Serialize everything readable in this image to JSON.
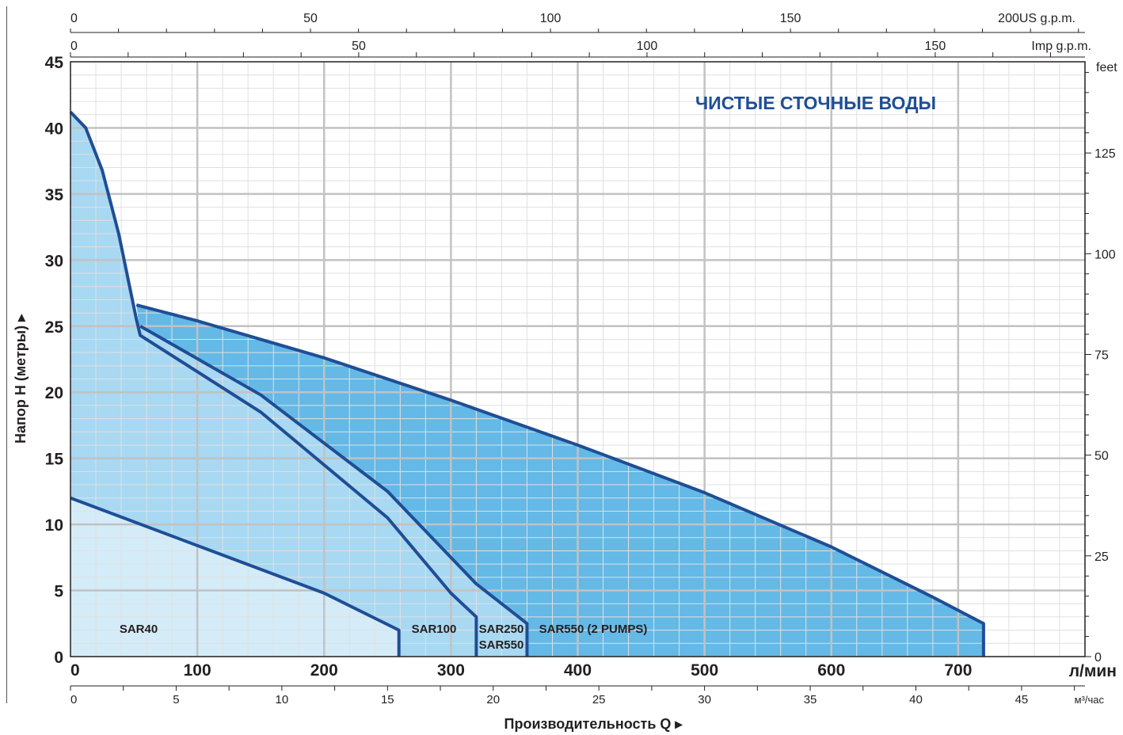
{
  "chart_data": {
    "type": "area",
    "title": "ЧИСТЫЕ  СТОЧНЫЕ ВОДЫ",
    "xlabel": "Производительность  Q",
    "ylabel": "Напор H (метры)",
    "x_unit": "л/мин",
    "xlim": [
      0,
      800
    ],
    "ylim": [
      0,
      45
    ],
    "x_ticks": [
      "0",
      "100",
      "200",
      "300",
      "400",
      "500",
      "600",
      "700"
    ],
    "y_ticks": [
      "0",
      "5",
      "10",
      "15",
      "20",
      "25",
      "30",
      "35",
      "40",
      "45"
    ],
    "secondary_axes": {
      "m3h": {
        "unit": "м³/час",
        "ticks": [
          "0",
          "5",
          "10",
          "15",
          "20",
          "25",
          "30",
          "35",
          "40",
          "45"
        ]
      },
      "usgpm": {
        "unit": "200US g.p.m.",
        "ticks": [
          "0",
          "50",
          "100",
          "150"
        ]
      },
      "impgpm": {
        "unit": "Imp g.p.m.",
        "ticks": [
          "0",
          "50",
          "100",
          "150"
        ]
      },
      "feet": {
        "unit": "feet",
        "ticks": [
          "0",
          "25",
          "50",
          "75",
          "100",
          "125"
        ]
      }
    },
    "grid": true,
    "series": [
      {
        "name": "SAR40",
        "color": "#d4ecf8",
        "points": [
          [
            0,
            12
          ],
          [
            100,
            8.4
          ],
          [
            200,
            4.8
          ],
          [
            259,
            2
          ]
        ],
        "end_q": 259
      },
      {
        "name": "SAR100",
        "color": "#a8d8f2",
        "points": [
          [
            0,
            41.2
          ],
          [
            12,
            40
          ],
          [
            25,
            36.8
          ],
          [
            38,
            32
          ],
          [
            52,
            25.5
          ],
          [
            55,
            24.3
          ],
          [
            150,
            18.5
          ],
          [
            250,
            10.5
          ],
          [
            300,
            4.8
          ],
          [
            320,
            3
          ]
        ],
        "end_q": 320
      },
      {
        "name": "SAR250",
        "color": "#a8d8f2",
        "points": [
          [
            55,
            25
          ],
          [
            150,
            19.8
          ],
          [
            250,
            12.5
          ],
          [
            320,
            5.5
          ],
          [
            360,
            2.5
          ]
        ],
        "end_q": 360
      },
      {
        "name": "SAR550",
        "color": "#a8d8f2",
        "points": [
          [
            55,
            25
          ],
          [
            150,
            19.8
          ],
          [
            250,
            12.5
          ],
          [
            320,
            5.5
          ],
          [
            360,
            2.5
          ]
        ],
        "end_q": 360
      },
      {
        "name": "SAR550 (2 PUMPS)",
        "color": "#64b9e6",
        "points": [
          [
            52,
            26.6
          ],
          [
            100,
            25.4
          ],
          [
            200,
            22.6
          ],
          [
            300,
            19.4
          ],
          [
            400,
            16
          ],
          [
            500,
            12.4
          ],
          [
            600,
            8.3
          ],
          [
            680,
            4.5
          ],
          [
            720,
            2.5
          ]
        ],
        "end_q": 720
      }
    ]
  },
  "colors": {
    "curve": "#1f4e96",
    "title": "#1f4e96",
    "grid_major": "#c2c2c2",
    "grid_minor": "#e0e0e0",
    "axis_text": "#231f20"
  }
}
